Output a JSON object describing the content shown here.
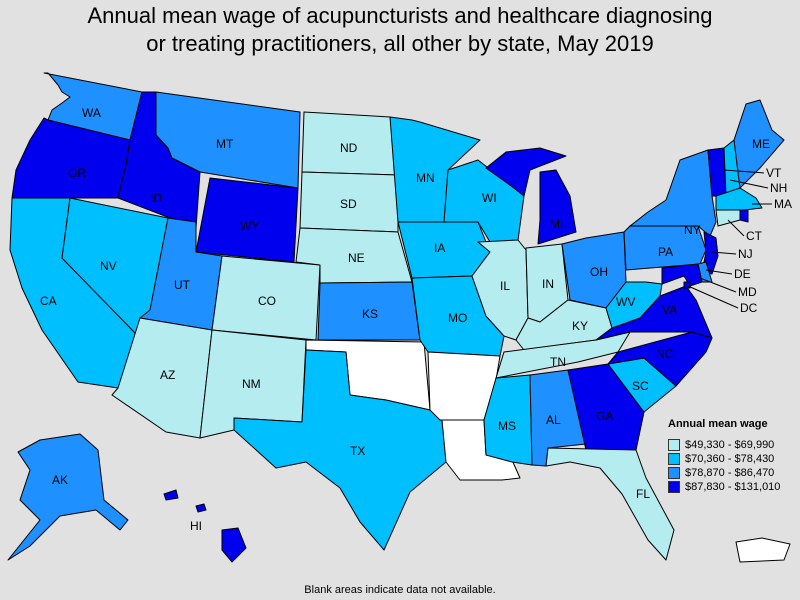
{
  "title": {
    "line1": "Annual mean wage of acupuncturists and healthcare diagnosing",
    "line2": "or treating practitioners, all other by state, May 2019"
  },
  "legend": {
    "title": "Annual mean wage",
    "bins": [
      {
        "label": "$49,330 - $69,990",
        "color": "#b4ecf0"
      },
      {
        "label": "$70,360 - $78,430",
        "color": "#00bfff"
      },
      {
        "label": "$78,870 - $86,470",
        "color": "#1e90ff"
      },
      {
        "label": "$87,830 - $131,010",
        "color": "#0000ee"
      }
    ]
  },
  "no_data_color": "#ffffff",
  "footnote": "Blank areas indicate data not available.",
  "states": {
    "WA": 2,
    "OR": 3,
    "CA": 1,
    "ID": 3,
    "NV": 1,
    "MT": 2,
    "WY": 3,
    "UT": 2,
    "AZ": 0,
    "CO": 0,
    "NM": 0,
    "ND": 0,
    "SD": 0,
    "NE": 0,
    "KS": 2,
    "OK": null,
    "TX": 1,
    "MN": 1,
    "IA": 1,
    "MO": 1,
    "AR": null,
    "LA": null,
    "WI": 1,
    "IL": 0,
    "MI": 3,
    "IN": 0,
    "OH": 2,
    "KY": 0,
    "TN": 0,
    "MS": 1,
    "AL": 2,
    "GA": 3,
    "FL": 0,
    "SC": 1,
    "NC": 3,
    "VA": 3,
    "WV": 1,
    "PA": 2,
    "NY": 2,
    "VT": 3,
    "NH": 1,
    "ME": 2,
    "MA": 1,
    "RI": 3,
    "CT": 0,
    "NJ": 3,
    "DE": 2,
    "MD": 3,
    "DC": 3,
    "AK": 2,
    "HI": 3,
    "PR": null
  }
}
